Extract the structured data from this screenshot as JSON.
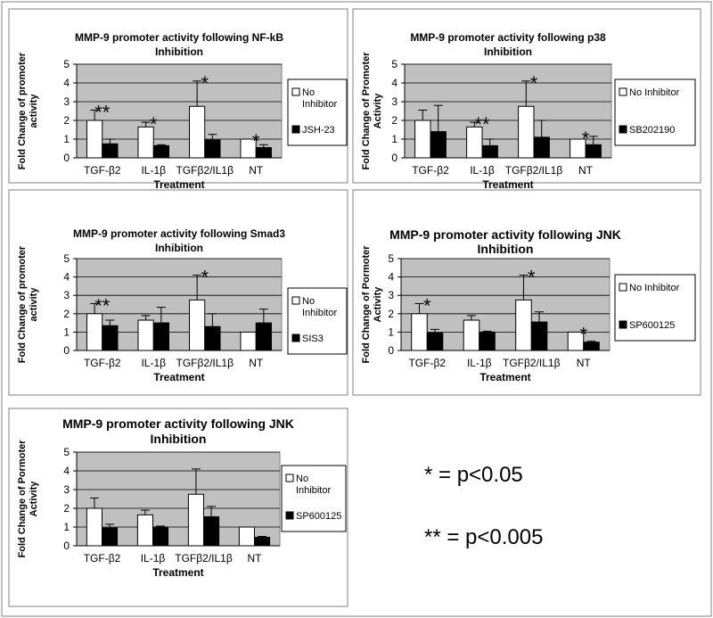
{
  "outer_border_color": "#808080",
  "plot_background": "#c0c0c0",
  "series_colors": [
    "#ffffff",
    "#000000"
  ],
  "significance_key": [
    {
      "symbol": "*",
      "text": "* = p<0.05"
    },
    {
      "symbol": "**",
      "text": "** = p<0.005"
    }
  ],
  "chart_data": [
    {
      "type": "bar",
      "title": [
        "MMP-9 promoter activity following NF-kB",
        "Inhibition"
      ],
      "ylabel": [
        "Fold Change of promoter",
        "activity"
      ],
      "xlabel": "Treatment",
      "categories": [
        "TGF-β2",
        "IL-1β",
        "TGFβ2/IL1β",
        "NT"
      ],
      "ylim": [
        0,
        5
      ],
      "yticks": [
        0,
        1,
        2,
        3,
        4,
        5
      ],
      "grid": true,
      "legend_position": "right",
      "series": [
        {
          "name": "No Inhibitor",
          "legend_lines": [
            "No",
            "Inhibitor"
          ],
          "values": [
            2.0,
            1.65,
            2.75,
            1.0
          ],
          "errors": [
            0.55,
            0.25,
            1.35,
            0.0
          ]
        },
        {
          "name": "JSH-23",
          "legend_lines": [
            "JSH-23"
          ],
          "values": [
            0.75,
            0.65,
            0.95,
            0.55
          ],
          "errors": [
            0.25,
            0.05,
            0.3,
            0.15
          ]
        }
      ],
      "annotations": [
        "**",
        "*",
        "*",
        "*"
      ]
    },
    {
      "type": "bar",
      "title": [
        "MMP-9 promoter activity following p38",
        "Inhibition"
      ],
      "ylabel": [
        "Fold Change of Promoter",
        "Activity"
      ],
      "xlabel": "Treatment",
      "categories": [
        "TGF-β2",
        "IL-1β",
        "TGFβ2/IL1β",
        "NT"
      ],
      "ylim": [
        0,
        5
      ],
      "yticks": [
        0,
        1,
        2,
        3,
        4,
        5
      ],
      "grid": true,
      "legend_position": "right",
      "series": [
        {
          "name": "No Inhibitor",
          "legend_lines": [
            "No Inhibitor"
          ],
          "values": [
            2.0,
            1.65,
            2.75,
            1.0
          ],
          "errors": [
            0.55,
            0.25,
            1.35,
            0.0
          ]
        },
        {
          "name": "SB202190",
          "legend_lines": [
            "SB202190"
          ],
          "values": [
            1.4,
            0.65,
            1.1,
            0.7
          ],
          "errors": [
            1.4,
            0.35,
            0.9,
            0.45
          ]
        }
      ],
      "annotations": [
        "",
        "**",
        "*",
        "*"
      ]
    },
    {
      "type": "bar",
      "title": [
        "MMP-9 promoter activity following Smad3",
        "Inhibition"
      ],
      "ylabel": [
        "Fold Change of promoter",
        "activity"
      ],
      "xlabel": "Treatment",
      "categories": [
        "TGF-β2",
        "IL-1β",
        "TGFβ2/IL1β",
        "NT"
      ],
      "ylim": [
        0,
        5
      ],
      "yticks": [
        0,
        1,
        2,
        3,
        4,
        5
      ],
      "grid": true,
      "legend_position": "right",
      "series": [
        {
          "name": "No Inhibitor",
          "legend_lines": [
            "No",
            "Inhibitor"
          ],
          "values": [
            2.0,
            1.65,
            2.75,
            1.0
          ],
          "errors": [
            0.55,
            0.25,
            1.35,
            0.0
          ]
        },
        {
          "name": "SIS3",
          "legend_lines": [
            "SIS3"
          ],
          "values": [
            1.35,
            1.5,
            1.3,
            1.5
          ],
          "errors": [
            0.3,
            0.85,
            0.7,
            0.75
          ]
        }
      ],
      "annotations": [
        "**",
        "",
        "*",
        ""
      ]
    },
    {
      "type": "bar",
      "title": [
        "MMP-9 promoter activity following JNK",
        "Inhibition"
      ],
      "ylabel": [
        "Fold Change of Pormoter",
        "Activity"
      ],
      "xlabel": "Treatment",
      "categories": [
        "TGF-β2",
        "IL-1β",
        "TGFβ2/IL1β",
        "NT"
      ],
      "ylim": [
        0,
        5
      ],
      "yticks": [
        0,
        1,
        2,
        3,
        4,
        5
      ],
      "grid": true,
      "legend_position": "right",
      "series": [
        {
          "name": "No Inhibitor",
          "legend_lines": [
            "No Inhibitor"
          ],
          "values": [
            2.0,
            1.65,
            2.75,
            1.0
          ],
          "errors": [
            0.55,
            0.25,
            1.35,
            0.0
          ]
        },
        {
          "name": "SP600125",
          "legend_lines": [
            "SP600125"
          ],
          "values": [
            0.95,
            1.0,
            1.55,
            0.45
          ],
          "errors": [
            0.2,
            0.05,
            0.55,
            0.05
          ]
        }
      ],
      "annotations": [
        "*",
        "",
        "*",
        "*"
      ]
    },
    {
      "type": "bar",
      "title": [
        "MMP-9 promoter activity following JNK",
        "Inhibition"
      ],
      "ylabel": [
        "Fold Change of Pormoter",
        "Activity"
      ],
      "xlabel": "Treatment",
      "categories": [
        "TGF-β2",
        "IL-1β",
        "TGFβ2/IL1β",
        "NT"
      ],
      "ylim": [
        0,
        5
      ],
      "yticks": [
        0,
        1,
        2,
        3,
        4,
        5
      ],
      "grid": true,
      "legend_position": "right",
      "series": [
        {
          "name": "No Inhibitor",
          "legend_lines": [
            "No",
            "Inhibitor"
          ],
          "values": [
            2.0,
            1.65,
            2.75,
            1.0
          ],
          "errors": [
            0.55,
            0.25,
            1.35,
            0.0
          ]
        },
        {
          "name": "SP600125",
          "legend_lines": [
            "SP600125"
          ],
          "values": [
            0.95,
            1.0,
            1.55,
            0.45
          ],
          "errors": [
            0.2,
            0.05,
            0.55,
            0.05
          ]
        }
      ],
      "annotations": [
        "",
        "",
        "",
        ""
      ]
    }
  ]
}
